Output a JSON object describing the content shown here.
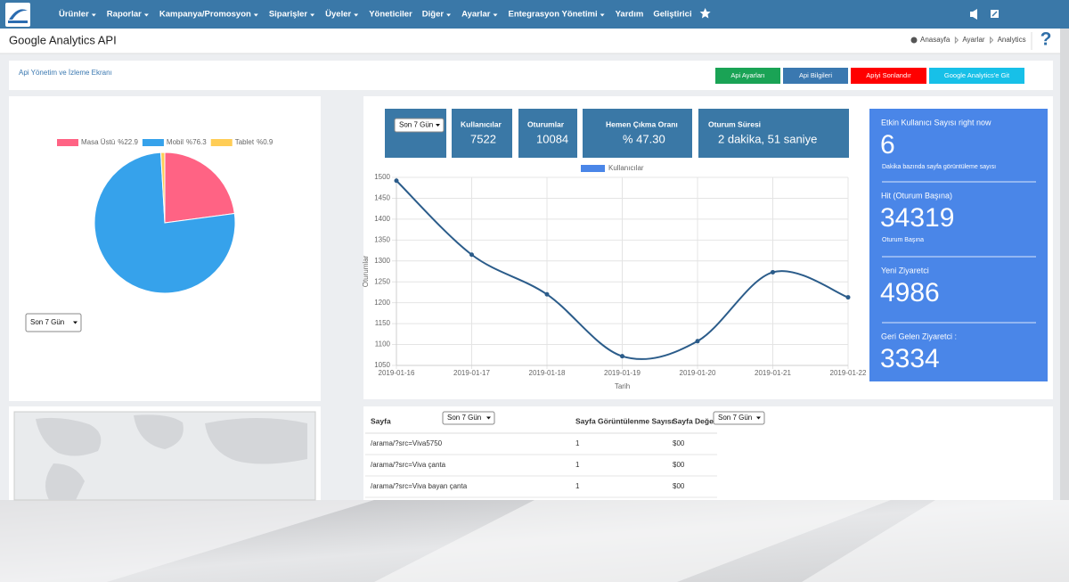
{
  "navbar": {
    "menu": [
      {
        "label": "Ürünler",
        "dropdown": true
      },
      {
        "label": "Raporlar",
        "dropdown": true
      },
      {
        "label": "Kampanya/Promosyon",
        "dropdown": true
      },
      {
        "label": "Siparişler",
        "dropdown": true
      },
      {
        "label": "Üyeler",
        "dropdown": true
      },
      {
        "label": "Yöneticiler",
        "dropdown": false
      },
      {
        "label": "Diğer",
        "dropdown": true
      },
      {
        "label": "Ayarlar",
        "dropdown": true
      },
      {
        "label": "Entegrasyon Yönetimi",
        "dropdown": true
      },
      {
        "label": "Yardım",
        "dropdown": false
      },
      {
        "label": "Geliştirici",
        "dropdown": false
      }
    ]
  },
  "header": {
    "title": "Google Analytics API",
    "breadcrumb": [
      "Anasayfa",
      "Ayarlar",
      "Analytics"
    ],
    "help": "?"
  },
  "toolbar": {
    "title": "Api Yönetim ve İzleme Ekranı",
    "buttons": [
      {
        "label": "Api Ayarları",
        "color": "#1aa355"
      },
      {
        "label": "Api Bilgileri",
        "color": "#3a78b0"
      },
      {
        "label": "Apiyi Sonlandır",
        "color": "#ff0000"
      },
      {
        "label": "Google Analytics'e Git",
        "color": "#17c0e8"
      }
    ]
  },
  "device_panel": {
    "period": "Son 7 Gün"
  },
  "chart_data": [
    {
      "type": "pie",
      "categories": [
        "Masa Üstü",
        "Mobil",
        "Tablet"
      ],
      "values": [
        22.9,
        76.3,
        0.9
      ],
      "value_labels": [
        "%22.9",
        "%76.3",
        "%0.9"
      ],
      "colors": [
        "#ff6384",
        "#36a2eb",
        "#ffcd56"
      ]
    },
    {
      "type": "line",
      "x": [
        "2019-01-16",
        "2019-01-17",
        "2019-01-18",
        "2019-01-19",
        "2019-01-20",
        "2019-01-21",
        "2019-01-22"
      ],
      "series": [
        {
          "name": "Kullanıcılar",
          "color": "#4a86e8",
          "line_color": "#2b5c8a",
          "values": [
            1492,
            1315,
            1220,
            1072,
            1108,
            1273,
            1213
          ]
        }
      ],
      "ylim": [
        1050,
        1500
      ],
      "yticks": [
        1050,
        1100,
        1150,
        1200,
        1250,
        1300,
        1350,
        1400,
        1450,
        1500
      ],
      "xlabel": "Tarih",
      "ylabel": "Oturumlar",
      "grid": true
    }
  ],
  "stats": {
    "period": "Son 7 Gün",
    "cards": [
      {
        "label": "Kullanıcılar",
        "value": 7522
      },
      {
        "label": "Oturumlar",
        "value": 10084
      },
      {
        "label": "Hemen Çıkma Oranı",
        "value": "% 47.30"
      },
      {
        "label": "Oturum Süresi",
        "value": "2 dakika, 51 saniye"
      }
    ]
  },
  "realtime": {
    "blocks": [
      {
        "title": "Etkin Kullanıcı Sayısı right now",
        "value": 6,
        "caption": "Dakika bazında sayfa görüntüleme sayısı"
      },
      {
        "title": "Hit (Oturum Başına)",
        "value": 34319,
        "caption": "Oturum Başına"
      },
      {
        "title": "Yeni Ziyaretci",
        "value": 4986
      },
      {
        "title": "Geri Gelen Ziyaretci :",
        "value": 3334
      }
    ]
  },
  "pages_table": {
    "period": "Son 7 Gün",
    "period2": "Son 7 Gün",
    "columns": [
      "Sayfa",
      "Sayfa Görüntülenme Sayısı",
      "Sayfa Değeri"
    ],
    "rows": [
      [
        "/arama/?src=Viva5750",
        1,
        "$00"
      ],
      [
        "/arama/?src=Viva çanta",
        1,
        "$00"
      ],
      [
        "/arama/?src=Viva bayan çanta",
        1,
        "$00"
      ]
    ]
  }
}
